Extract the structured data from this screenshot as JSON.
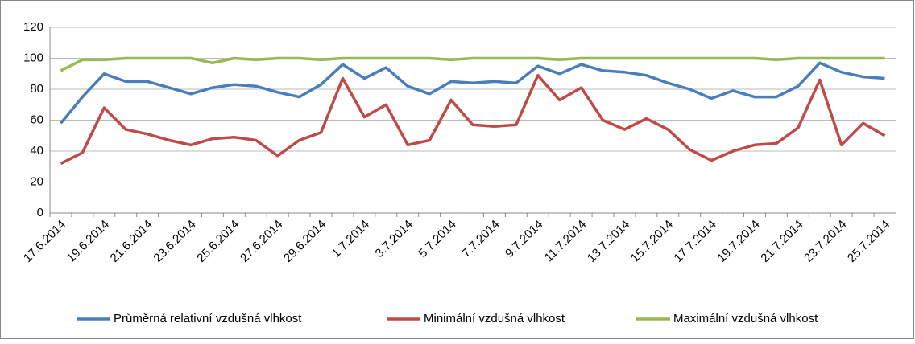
{
  "chart_data": {
    "type": "line",
    "categories": [
      "17.6.2014",
      null,
      "19.6.2014",
      null,
      "21.6.2014",
      null,
      "23.6.2014",
      null,
      "25.6.2014",
      null,
      "27.6.2014",
      null,
      "29.6.2014",
      null,
      "1.7.2014",
      null,
      "3.7.2014",
      null,
      "5.7.2014",
      null,
      "7.7.2014",
      null,
      "9.7.2014",
      null,
      "11.7.2014",
      null,
      "13.7.2014",
      null,
      "15.7.2014",
      null,
      "17.7.2014",
      null,
      "19.7.2014",
      null,
      "21.7.2014",
      null,
      "23.7.2014",
      null,
      "25.7.2014"
    ],
    "series": [
      {
        "name": "Průměrná relativní vzdušná vlhkost",
        "color": "#4a7ebb",
        "values": [
          58,
          75,
          90,
          85,
          85,
          81,
          77,
          81,
          83,
          82,
          78,
          75,
          83,
          96,
          87,
          94,
          82,
          77,
          85,
          84,
          85,
          84,
          95,
          90,
          96,
          92,
          91,
          89,
          84,
          80,
          74,
          79,
          75,
          75,
          82,
          97,
          91,
          88,
          87
        ]
      },
      {
        "name": "Minimální vzdušná vlhkost",
        "color": "#be4b48",
        "values": [
          32,
          39,
          68,
          54,
          51,
          47,
          44,
          48,
          49,
          47,
          37,
          47,
          52,
          87,
          62,
          70,
          44,
          47,
          73,
          57,
          56,
          57,
          89,
          73,
          81,
          60,
          54,
          61,
          54,
          41,
          34,
          40,
          44,
          45,
          55,
          86,
          44,
          58,
          50
        ]
      },
      {
        "name": "Maximální vzdušná vlhkost",
        "color": "#98b954",
        "values": [
          92,
          99,
          99,
          100,
          100,
          100,
          100,
          97,
          100,
          99,
          100,
          100,
          99,
          100,
          100,
          100,
          100,
          100,
          99,
          100,
          100,
          100,
          100,
          99,
          100,
          100,
          100,
          100,
          100,
          100,
          100,
          100,
          100,
          99,
          100,
          100,
          100,
          100,
          100
        ]
      }
    ],
    "ylim": [
      0,
      120
    ],
    "yticks": [
      0,
      20,
      40,
      60,
      80,
      100,
      120
    ],
    "grid": true,
    "legend": "bottom"
  }
}
